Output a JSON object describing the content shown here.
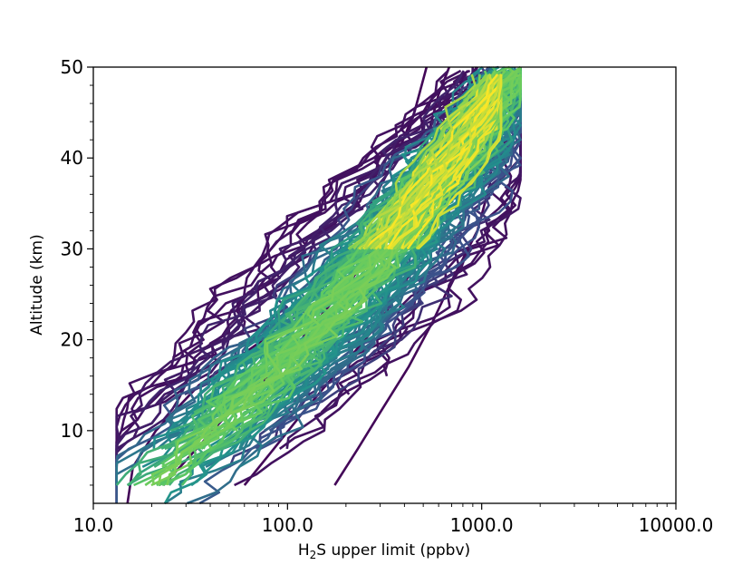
{
  "chart_data": {
    "type": "line",
    "title": "",
    "xlabel_main": "H",
    "xlabel_sub": "2",
    "xlabel_rest": "S upper limit (ppbv)",
    "ylabel": "Altitude (km)",
    "xscale": "log",
    "xlim": [
      10,
      10000
    ],
    "ylim": [
      2,
      50
    ],
    "xticks": [
      {
        "value": 10,
        "label": "10.0"
      },
      {
        "value": 100,
        "label": "100.0"
      },
      {
        "value": 1000,
        "label": "1000.0"
      },
      {
        "value": 10000,
        "label": "10000.0"
      }
    ],
    "yticks": [
      {
        "value": 10,
        "label": "10"
      },
      {
        "value": 20,
        "label": "20"
      },
      {
        "value": 30,
        "label": "30"
      },
      {
        "value": 40,
        "label": "40"
      },
      {
        "value": 50,
        "label": "50"
      }
    ],
    "grid": false,
    "legend": "none",
    "colormap": [
      "#440154",
      "#3b528b",
      "#21918c",
      "#5ec962",
      "#fde725"
    ],
    "profile_count": 140,
    "representative_profiles": [
      {
        "name": "",
        "altitude": [
          2,
          6,
          10,
          15,
          20,
          25,
          30,
          35,
          40,
          45,
          50
        ],
        "value": [
          15,
          16,
          21,
          35,
          75,
          130,
          200,
          270,
          360,
          450,
          520
        ]
      },
      {
        "name": "",
        "altitude": [
          4,
          8,
          12,
          17,
          22,
          27,
          32,
          37,
          42,
          47,
          50
        ],
        "value": [
          23,
          34,
          50,
          90,
          140,
          220,
          320,
          430,
          520,
          600,
          680
        ]
      },
      {
        "name": "",
        "altitude": [
          4,
          8,
          12,
          17,
          22,
          27,
          32,
          37,
          42,
          47,
          50
        ],
        "value": [
          60,
          85,
          120,
          190,
          300,
          420,
          560,
          700,
          650,
          800,
          950
        ]
      },
      {
        "name": "",
        "altitude": [
          4,
          8,
          12,
          17,
          22,
          27,
          32,
          37,
          42,
          47,
          50
        ],
        "value": [
          175,
          230,
          300,
          420,
          560,
          720,
          950,
          1100,
          1150,
          1200,
          1300
        ]
      }
    ]
  }
}
